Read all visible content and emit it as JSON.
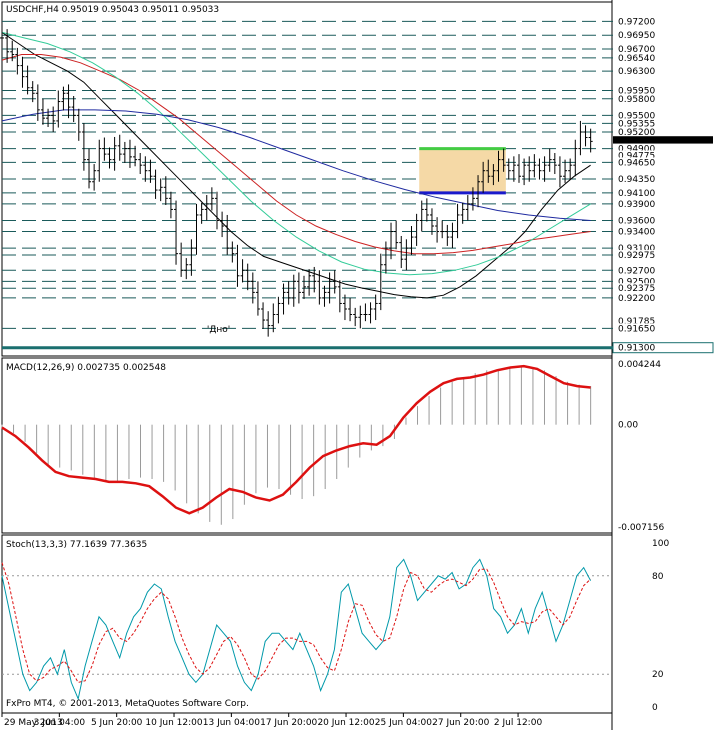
{
  "window": {
    "header": "USDCHF,H4  0.95019 0.95043 0.95011 0.95033",
    "watermark": "FxPro MT4, © 2001-2013, MetaQuotes Software Corp."
  },
  "colors": {
    "grid_dashed": "#1a5a5a",
    "price_line_teal": "#1a6f6f",
    "ma_black": "#000000",
    "ma_red": "#cc2222",
    "ma_green": "#33cc99",
    "ma_blue": "#1f2aa0",
    "box_fill": "#f5d9a6",
    "box_green": "#44cc44",
    "box_blue": "#1a1acc",
    "macd_line": "#dd1111",
    "hist": "#9a9a9a",
    "stoch_main": "#0099aa",
    "stoch_signal": "#dd1111"
  },
  "chart_data": [
    {
      "type": "line",
      "title": "USDCHF,H4  0.95019 0.95043 0.95011 0.95033",
      "symbol": "USDCHF",
      "timeframe": "H4",
      "quote": {
        "open": 0.95019,
        "high": 0.95043,
        "low": 0.95011,
        "close": 0.95033
      },
      "ylim": [
        0.9115,
        0.9755
      ],
      "level_labels": [
        "0.97200",
        "0.96950",
        "0.96700",
        "0.96540",
        "0.96300",
        "0.95950",
        "0.95800",
        "0.95500",
        "0.95355",
        "0.95200",
        "0.95033",
        "0.94900",
        "0.94775",
        "0.94650",
        "0.94350",
        "0.94100",
        "0.93900",
        "0.93600",
        "0.93400",
        "0.93100",
        "0.92975",
        "0.92700",
        "0.92500",
        "0.92375",
        "0.92200",
        "0.91785",
        "0.91650",
        "0.91300"
      ],
      "dashed_levels": [
        0.972,
        0.9695,
        0.967,
        0.9654,
        0.963,
        0.9595,
        0.958,
        0.955,
        0.95355,
        0.952,
        0.949,
        0.9465,
        0.9435,
        0.941,
        0.939,
        0.936,
        0.934,
        0.931,
        0.92975,
        0.927,
        0.925,
        0.92375,
        0.922,
        0.9165
      ],
      "strong_level": 0.913,
      "current_price": 0.95033,
      "annotation": "'Дно'",
      "annotation_price": 0.9158,
      "box": {
        "top": 0.949,
        "bottom": 0.941,
        "x_start": 0.684,
        "x_end": 0.826
      },
      "x_tick_labels": [
        "29 May 2013",
        "3 Jun 04:00",
        "5 Jun 20:00",
        "10 Jun 12:00",
        "13 Jun 04:00",
        "17 Jun 20:00",
        "20 Jun 12:00",
        "25 Jun 04:00",
        "27 Jun 20:00",
        "2 Jul 12:00"
      ],
      "x_ticks": [
        0.0,
        0.094,
        0.188,
        0.282,
        0.376,
        0.47,
        0.564,
        0.658,
        0.752,
        0.846
      ],
      "price_close": [
        0.969,
        0.9665,
        0.966,
        0.964,
        0.962,
        0.96,
        0.959,
        0.956,
        0.9545,
        0.955,
        0.954,
        0.9575,
        0.959,
        0.9565,
        0.955,
        0.952,
        0.947,
        0.943,
        0.945,
        0.949,
        0.948,
        0.947,
        0.9495,
        0.948,
        0.949,
        0.9475,
        0.947,
        0.946,
        0.945,
        0.944,
        0.9415,
        0.942,
        0.94,
        0.938,
        0.93,
        0.927,
        0.928,
        0.931,
        0.937,
        0.938,
        0.939,
        0.94,
        0.936,
        0.935,
        0.931,
        0.93,
        0.926,
        0.927,
        0.925,
        0.923,
        0.92,
        0.918,
        0.917,
        0.919,
        0.921,
        0.923,
        0.922,
        0.925,
        0.923,
        0.924,
        0.926,
        0.925,
        0.922,
        0.923,
        0.925,
        0.924,
        0.921,
        0.92,
        0.919,
        0.9185,
        0.919,
        0.919,
        0.92,
        0.921,
        0.928,
        0.931,
        0.934,
        0.932,
        0.929,
        0.931,
        0.933,
        0.936,
        0.938,
        0.937,
        0.935,
        0.934,
        0.934,
        0.933,
        0.934,
        0.937,
        0.938,
        0.939,
        0.94,
        0.943,
        0.945,
        0.944,
        0.945,
        0.947,
        0.946,
        0.945,
        0.946,
        0.944,
        0.946,
        0.945,
        0.946,
        0.945,
        0.946,
        0.947,
        0.946,
        0.944,
        0.945,
        0.946,
        0.949,
        0.952,
        0.951,
        0.9503
      ],
      "series": [
        {
          "color_key": "ma_black",
          "values": [
            0.97,
            0.968,
            0.966,
            0.9645,
            0.963,
            0.961,
            0.958,
            0.955,
            0.952,
            0.949,
            0.946,
            0.943,
            0.94,
            0.937,
            0.934,
            0.9315,
            0.9295,
            0.9285,
            0.9275,
            0.9265,
            0.9255,
            0.9245,
            0.9238,
            0.9232,
            0.9226,
            0.9222,
            0.922,
            0.9225,
            0.924,
            0.926,
            0.9285,
            0.931,
            0.934,
            0.938,
            0.9415,
            0.944,
            0.946
          ]
        },
        {
          "color_key": "ma_red",
          "values": [
            0.965,
            0.966,
            0.966,
            0.9655,
            0.9645,
            0.963,
            0.9615,
            0.9595,
            0.957,
            0.9545,
            0.9515,
            0.9485,
            0.9455,
            0.9425,
            0.9395,
            0.937,
            0.935,
            0.9335,
            0.9322,
            0.9312,
            0.9305,
            0.93,
            0.93,
            0.9302,
            0.9306,
            0.9312,
            0.9318,
            0.9325,
            0.933,
            0.9335,
            0.934
          ]
        },
        {
          "color_key": "ma_green",
          "values": [
            0.97,
            0.969,
            0.968,
            0.9665,
            0.9645,
            0.962,
            0.959,
            0.9555,
            0.9515,
            0.9475,
            0.9435,
            0.9395,
            0.936,
            0.933,
            0.9305,
            0.9285,
            0.9272,
            0.9265,
            0.9262,
            0.9264,
            0.927,
            0.928,
            0.9295,
            0.9315,
            0.934,
            0.9365,
            0.939
          ]
        },
        {
          "color_key": "ma_blue",
          "values": [
            0.954,
            0.9552,
            0.956,
            0.956,
            0.9558,
            0.9552,
            0.9542,
            0.9528,
            0.951,
            0.949,
            0.947,
            0.945,
            0.9432,
            0.9416,
            0.9402,
            0.939,
            0.9378,
            0.937,
            0.9364,
            0.936
          ]
        }
      ]
    },
    {
      "type": "bar",
      "title": "MACD(12,26,9) 0.002735 0.002548",
      "indicator": "MACD(12,26,9)",
      "values_shown": [
        0.002735,
        0.002548
      ],
      "ylim": [
        -0.007156,
        0.004244
      ],
      "tick_labels": [
        "0.004244",
        "0.00",
        "-0.007156"
      ],
      "histogram": [
        -0.0002,
        -0.0006,
        -0.0012,
        -0.002,
        -0.0028,
        -0.003,
        -0.0032,
        -0.0035,
        -0.0038,
        -0.004,
        -0.004,
        -0.0038,
        -0.0037,
        -0.0038,
        -0.004,
        -0.0046,
        -0.0055,
        -0.0062,
        -0.0068,
        -0.007,
        -0.0066,
        -0.0056,
        -0.0048,
        -0.0044,
        -0.0045,
        -0.0049,
        -0.0052,
        -0.005,
        -0.0045,
        -0.0038,
        -0.003,
        -0.0023,
        -0.0018,
        -0.0015,
        -0.001,
        0.0005,
        0.0013,
        0.002,
        0.0026,
        0.003,
        0.0033,
        0.0036,
        0.0038,
        0.0039,
        0.004,
        0.0041,
        0.004,
        0.0038,
        0.0034,
        0.003,
        0.0028,
        0.0027
      ],
      "signal": [
        -0.0002,
        -0.0008,
        -0.0016,
        -0.0025,
        -0.0033,
        -0.0036,
        -0.0037,
        -0.0038,
        -0.004,
        -0.004,
        -0.0041,
        -0.0043,
        -0.005,
        -0.0058,
        -0.0062,
        -0.0058,
        -0.0051,
        -0.0045,
        -0.0047,
        -0.0051,
        -0.0053,
        -0.0049,
        -0.004,
        -0.003,
        -0.0022,
        -0.0018,
        -0.0015,
        -0.0013,
        -0.0014,
        -0.0008,
        0.0005,
        0.0015,
        0.0023,
        0.0029,
        0.0032,
        0.0033,
        0.0035,
        0.0038,
        0.004,
        0.0041,
        0.0039,
        0.0034,
        0.0029,
        0.0027,
        0.0026
      ]
    },
    {
      "type": "line",
      "title": "Stoch(13,3,3) 77.1639 77.3635",
      "indicator": "Stoch(13,3,3)",
      "values_shown": [
        77.1639,
        77.3635
      ],
      "ylim": [
        0,
        100
      ],
      "tick_labels": [
        "100",
        "80",
        "20",
        "0"
      ],
      "ticks": [
        100,
        80,
        20,
        0
      ],
      "main": [
        80,
        60,
        40,
        20,
        10,
        15,
        25,
        30,
        20,
        35,
        15,
        5,
        25,
        40,
        55,
        50,
        40,
        30,
        45,
        55,
        60,
        70,
        75,
        72,
        55,
        40,
        30,
        20,
        15,
        20,
        35,
        50,
        45,
        40,
        25,
        15,
        10,
        20,
        40,
        45,
        45,
        40,
        35,
        45,
        35,
        25,
        10,
        20,
        35,
        70,
        75,
        60,
        45,
        40,
        35,
        40,
        55,
        85,
        90,
        80,
        65,
        70,
        75,
        80,
        78,
        82,
        72,
        75,
        85,
        90,
        80,
        60,
        55,
        45,
        50,
        60,
        45,
        60,
        70,
        55,
        40,
        50,
        65,
        80,
        85,
        77
      ],
      "signal": [
        88,
        75,
        55,
        35,
        20,
        16,
        18,
        23,
        25,
        28,
        22,
        15,
        16,
        25,
        38,
        46,
        48,
        42,
        40,
        45,
        52,
        60,
        66,
        70,
        66,
        55,
        42,
        32,
        24,
        20,
        24,
        32,
        40,
        43,
        38,
        30,
        20,
        17,
        22,
        30,
        38,
        42,
        42,
        40,
        40,
        38,
        30,
        24,
        22,
        35,
        52,
        63,
        62,
        52,
        44,
        40,
        42,
        55,
        72,
        82,
        80,
        72,
        70,
        74,
        77,
        78,
        76,
        74,
        78,
        84,
        84,
        76,
        65,
        55,
        50,
        52,
        51,
        52,
        58,
        60,
        55,
        50,
        55,
        65,
        74,
        78
      ]
    }
  ]
}
